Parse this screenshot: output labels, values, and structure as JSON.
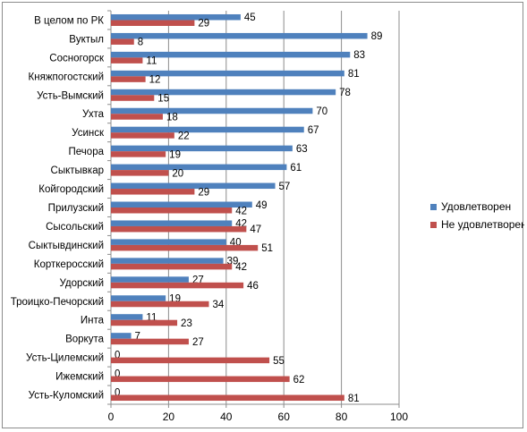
{
  "chart_data": {
    "type": "bar",
    "orientation": "horizontal",
    "categories": [
      "В целом по РК",
      "Вуктыл",
      "Сосногорск",
      "Княжпогостский",
      "Усть-Вымский",
      "Ухта",
      "Усинск",
      "Печора",
      "Сыктывкар",
      "Койгородский",
      "Прилузский",
      "Сысольский",
      "Сыктывдинский",
      "Корткеросский",
      "Удорский",
      "Троицко-Печорский",
      "Инта",
      "Воркута",
      "Усть-Цилемский",
      "Ижемский",
      "Усть-Куломский"
    ],
    "series": [
      {
        "name": "Удовлетворен",
        "color": "#4f81bd",
        "values": [
          45,
          89,
          83,
          81,
          78,
          70,
          67,
          63,
          61,
          57,
          49,
          42,
          40,
          39,
          27,
          19,
          11,
          7,
          0,
          0,
          0
        ]
      },
      {
        "name": "Не удовлетворен",
        "color": "#c0504d",
        "values": [
          29,
          8,
          11,
          12,
          15,
          18,
          22,
          19,
          20,
          29,
          42,
          47,
          51,
          42,
          46,
          34,
          23,
          27,
          55,
          62,
          81
        ]
      }
    ],
    "xlim": [
      0,
      100
    ],
    "xticks": [
      0,
      20,
      40,
      60,
      80,
      100
    ],
    "grid": true,
    "legend": "right",
    "data_labels": true
  }
}
